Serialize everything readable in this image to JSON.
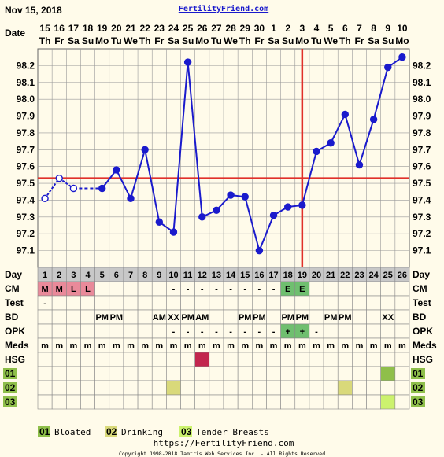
{
  "header": {
    "date": "Nov 15, 2018",
    "site": "FertilityFriend.com"
  },
  "row_labels": {
    "date": "Date",
    "day": "Day",
    "cm": "CM",
    "test": "Test",
    "bd": "BD",
    "opk": "OPK",
    "meds": "Meds",
    "hsg": "HSG",
    "c01": "01",
    "c02": "02",
    "c03": "03"
  },
  "legend": [
    {
      "code": "01",
      "label": "Bloated",
      "color": "#8fbf4a"
    },
    {
      "code": "02",
      "label": "Drinking",
      "color": "#d9d97a"
    },
    {
      "code": "03",
      "label": "Tender Breasts",
      "color": "#ccf26e"
    }
  ],
  "footer": {
    "url": "https://FertilityFriend.com",
    "copyright": "Copyright 1998-2018 Tamtris Web Services Inc. - All Rights Reserved."
  },
  "colors": {
    "line": "#1a1acc",
    "coverline": "#e0302a",
    "grid": "#999999",
    "background": "#fffbea",
    "day_row": "#c8c8c8",
    "cm_m": "#e98a9a",
    "cm_e": "#6fbf6f",
    "opk_pos": "#6fbf6f",
    "hsg": "#c2264e",
    "c01": "#8fbf4a",
    "c02": "#d9d97a",
    "c03": "#ccf26e"
  },
  "chart_data": {
    "type": "line",
    "dates": [
      "15",
      "16",
      "17",
      "18",
      "19",
      "20",
      "21",
      "22",
      "23",
      "24",
      "25",
      "26",
      "27",
      "28",
      "29",
      "30",
      "1",
      "2",
      "3",
      "4",
      "5",
      "6",
      "7",
      "8",
      "9",
      "10"
    ],
    "weekdays": [
      "Th",
      "Fr",
      "Sa",
      "Su",
      "Mo",
      "Tu",
      "We",
      "Th",
      "Fr",
      "Sa",
      "Su",
      "Mo",
      "Tu",
      "We",
      "Th",
      "Fr",
      "Sa",
      "Su",
      "Mo",
      "Tu",
      "We",
      "Th",
      "Fr",
      "Sa",
      "Su",
      "Mo"
    ],
    "days": [
      "1",
      "2",
      "3",
      "4",
      "5",
      "6",
      "7",
      "8",
      "9",
      "10",
      "11",
      "12",
      "13",
      "14",
      "15",
      "16",
      "17",
      "18",
      "19",
      "20",
      "21",
      "22",
      "23",
      "24",
      "25",
      "26"
    ],
    "temps": [
      97.41,
      97.53,
      97.47,
      null,
      97.47,
      97.58,
      97.41,
      97.7,
      97.27,
      97.21,
      98.22,
      97.3,
      97.34,
      97.43,
      97.42,
      97.1,
      97.31,
      97.36,
      97.37,
      97.69,
      97.74,
      97.91,
      97.61,
      97.88,
      98.19,
      98.25
    ],
    "open_points": [
      1,
      2,
      3
    ],
    "dashed_gap": [
      3,
      5
    ],
    "y_ticks": [
      "98.2",
      "98.1",
      "98.0",
      "97.9",
      "97.8",
      "97.7",
      "97.6",
      "97.5",
      "97.4",
      "97.3",
      "97.2",
      "97.1"
    ],
    "ylim": [
      97.0,
      98.3
    ],
    "coverline": 97.53,
    "ovulation_day": 19,
    "grid": true,
    "rows": {
      "cm": {
        "1": "M",
        "2": "M",
        "3": "L",
        "4": "L",
        "10": "-",
        "11": "-",
        "12": "-",
        "13": "-",
        "14": "-",
        "15": "-",
        "16": "-",
        "17": "-",
        "18": "E",
        "19": "E"
      },
      "test": {
        "1": "-"
      },
      "bd": {
        "5": "PM",
        "6": "PM",
        "9": "AM",
        "10": "XX",
        "11": "PM",
        "12": "AM",
        "15": "PM",
        "16": "PM",
        "18": "PM",
        "19": "PM",
        "21": "PM",
        "22": "PM",
        "25": "XX"
      },
      "opk": {
        "10": "-",
        "11": "-",
        "12": "-",
        "13": "-",
        "14": "-",
        "15": "-",
        "16": "-",
        "17": "-",
        "18": "+",
        "19": "+",
        "20": "-"
      },
      "meds": {
        "1": "m",
        "2": "m",
        "3": "m",
        "4": "m",
        "5": "m",
        "6": "m",
        "7": "m",
        "8": "m",
        "9": "m",
        "10": "m",
        "11": "m",
        "12": "m",
        "13": "m",
        "14": "m",
        "15": "m",
        "16": "m",
        "17": "m",
        "18": "m",
        "19": "m",
        "20": "m",
        "21": "m",
        "22": "m",
        "23": "m",
        "24": "m",
        "25": "m",
        "26": "m"
      },
      "hsg": {
        "12": "filled"
      },
      "c01": {
        "25": "filled"
      },
      "c02": {
        "10": "filled",
        "22": "filled"
      },
      "c03": {
        "25": "filled"
      }
    }
  }
}
